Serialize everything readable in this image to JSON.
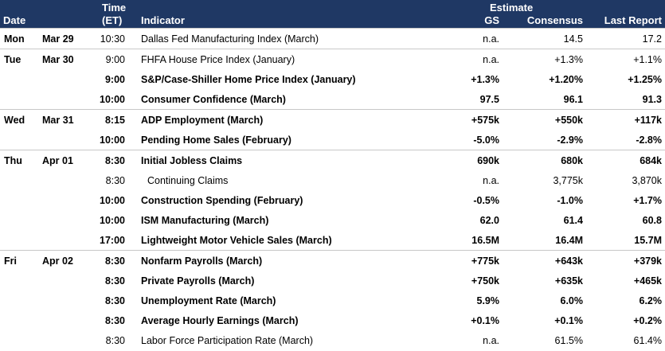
{
  "header": {
    "estimate": "Estimate",
    "date": "Date",
    "time_line1": "Time",
    "time_line2": "(ET)",
    "indicator": "Indicator",
    "gs": "GS",
    "consensus": "Consensus",
    "last_report": "Last Report"
  },
  "rows": [
    {
      "day": "Mon",
      "date": "Mar 29",
      "time": "10:30",
      "indicator": "Dallas Fed Manufacturing Index (March)",
      "gs": "n.a.",
      "consensus": "14.5",
      "last": "17.2"
    },
    {
      "day": "Tue",
      "date": "Mar 30",
      "time": "9:00",
      "indicator": "FHFA House Price Index (January)",
      "gs": "n.a.",
      "consensus": "+1.3%",
      "last": "+1.1%"
    },
    {
      "day": "",
      "date": "",
      "time": "9:00",
      "indicator": "S&P/Case-Shiller Home Price Index (January)",
      "gs": "+1.3%",
      "consensus": "+1.20%",
      "last": "+1.25%"
    },
    {
      "day": "",
      "date": "",
      "time": "10:00",
      "indicator": "Consumer Confidence (March)",
      "gs": "97.5",
      "consensus": "96.1",
      "last": "91.3"
    },
    {
      "day": "Wed",
      "date": "Mar 31",
      "time": "8:15",
      "indicator": "ADP Employment (March)",
      "gs": "+575k",
      "consensus": "+550k",
      "last": "+117k"
    },
    {
      "day": "",
      "date": "",
      "time": "10:00",
      "indicator": "Pending Home Sales (February)",
      "gs": "-5.0%",
      "consensus": "-2.9%",
      "last": "-2.8%"
    },
    {
      "day": "Thu",
      "date": "Apr 01",
      "time": "8:30",
      "indicator": "Initial Jobless Claims",
      "gs": "690k",
      "consensus": "680k",
      "last": "684k"
    },
    {
      "day": "",
      "date": "",
      "time": "8:30",
      "indicator": "Continuing Claims",
      "gs": "n.a.",
      "consensus": "3,775k",
      "last": "3,870k"
    },
    {
      "day": "",
      "date": "",
      "time": "10:00",
      "indicator": "Construction Spending (February)",
      "gs": "-0.5%",
      "consensus": "-1.0%",
      "last": "+1.7%"
    },
    {
      "day": "",
      "date": "",
      "time": "10:00",
      "indicator": "ISM Manufacturing (March)",
      "gs": "62.0",
      "consensus": "61.4",
      "last": "60.8"
    },
    {
      "day": "",
      "date": "",
      "time": "17:00",
      "indicator": "Lightweight Motor Vehicle Sales (March)",
      "gs": "16.5M",
      "consensus": "16.4M",
      "last": "15.7M"
    },
    {
      "day": "Fri",
      "date": "Apr 02",
      "time": "8:30",
      "indicator": "Nonfarm Payrolls (March)",
      "gs": "+775k",
      "consensus": "+643k",
      "last": "+379k"
    },
    {
      "day": "",
      "date": "",
      "time": "8:30",
      "indicator": "Private Payrolls (March)",
      "gs": "+750k",
      "consensus": "+635k",
      "last": "+465k"
    },
    {
      "day": "",
      "date": "",
      "time": "8:30",
      "indicator": "Unemployment Rate (March)",
      "gs": "5.9%",
      "consensus": "6.0%",
      "last": "6.2%"
    },
    {
      "day": "",
      "date": "",
      "time": "8:30",
      "indicator": "Average Hourly Earnings (March)",
      "gs": "+0.1%",
      "consensus": "+0.1%",
      "last": "+0.2%"
    },
    {
      "day": "",
      "date": "",
      "time": "8:30",
      "indicator": "Labor Force Participation Rate (March)",
      "gs": "n.a.",
      "consensus": "61.5%",
      "last": "61.4%"
    }
  ]
}
